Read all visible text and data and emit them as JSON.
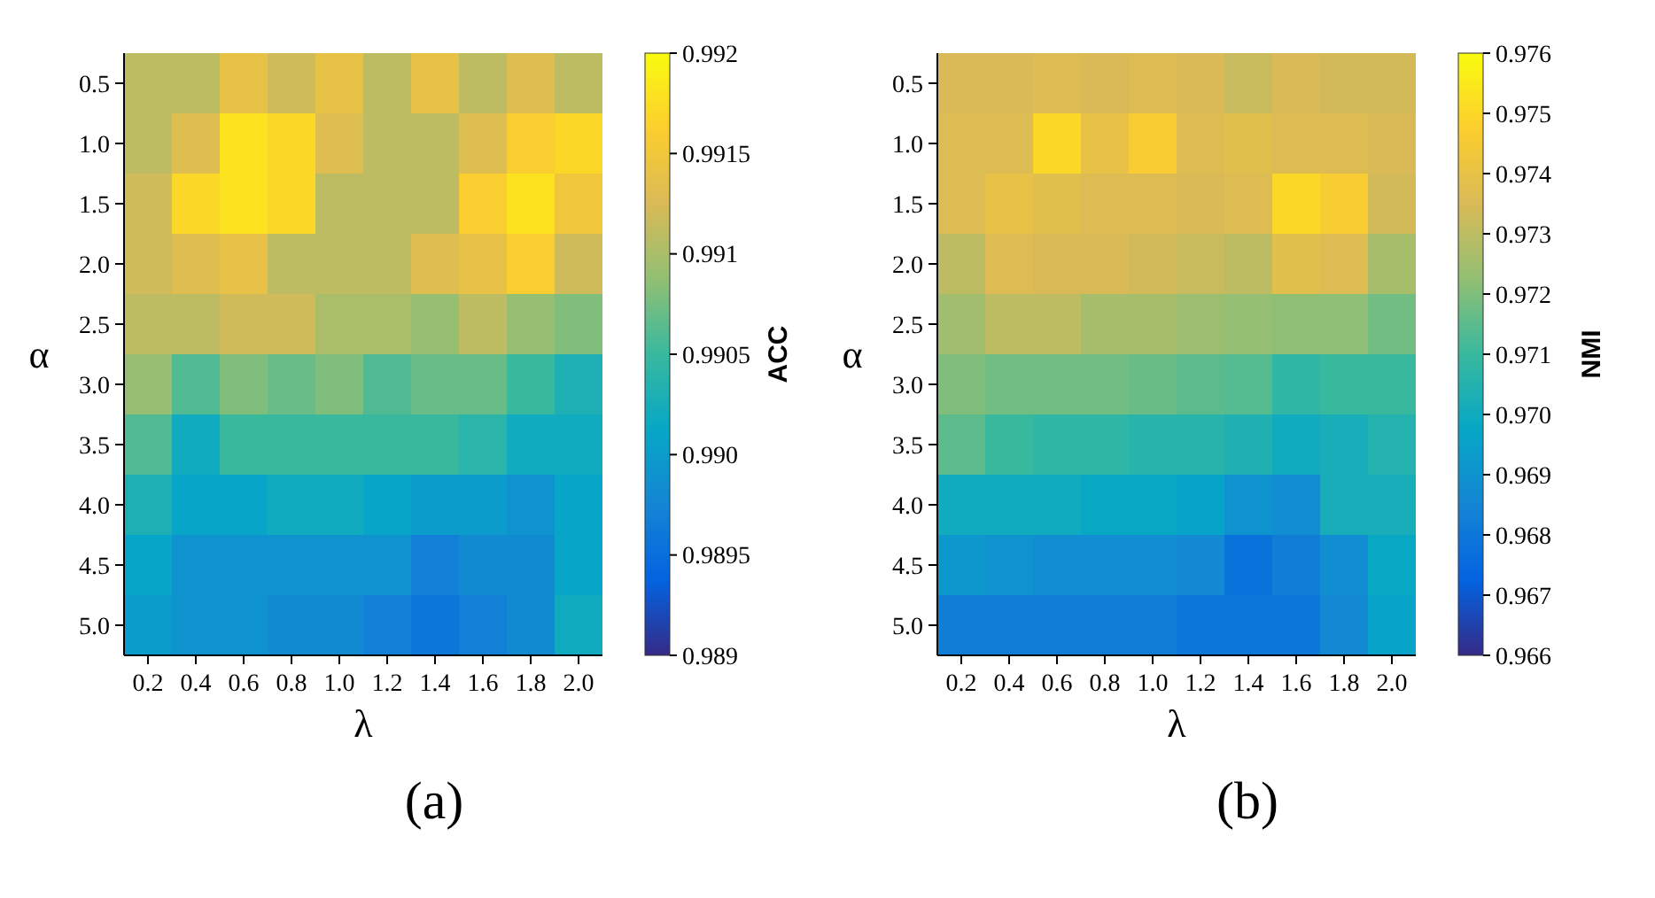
{
  "chart_data": [
    {
      "type": "heatmap",
      "title": "(a)",
      "xlabel": "λ",
      "ylabel": "α",
      "clabel": "ACC",
      "categories": [
        "0.2",
        "0.4",
        "0.6",
        "0.8",
        "1.0",
        "1.2",
        "1.4",
        "1.6",
        "1.8",
        "2.0"
      ],
      "y_categories": [
        "0.5",
        "1.0",
        "1.5",
        "2.0",
        "2.5",
        "3.0",
        "3.5",
        "4.0",
        "4.5",
        "5.0"
      ],
      "cells": [
        [
          0.9911,
          0.9911,
          0.9914,
          0.9912,
          0.9914,
          0.9911,
          0.9914,
          0.9911,
          0.9913,
          0.9911
        ],
        [
          0.9911,
          0.9913,
          0.9918,
          0.9917,
          0.9913,
          0.9911,
          0.9911,
          0.9913,
          0.9916,
          0.9917
        ],
        [
          0.9912,
          0.9917,
          0.9918,
          0.9917,
          0.9911,
          0.9911,
          0.9911,
          0.9916,
          0.9918,
          0.9915
        ],
        [
          0.9912,
          0.9913,
          0.9914,
          0.9911,
          0.9911,
          0.9911,
          0.9913,
          0.9914,
          0.9916,
          0.9912
        ],
        [
          0.9911,
          0.9911,
          0.9912,
          0.9912,
          0.991,
          0.991,
          0.9909,
          0.9911,
          0.9909,
          0.9908
        ],
        [
          0.9909,
          0.9906,
          0.9908,
          0.9907,
          0.9908,
          0.9906,
          0.9907,
          0.9907,
          0.9905,
          0.9903
        ],
        [
          0.9906,
          0.9902,
          0.9905,
          0.9905,
          0.9905,
          0.9905,
          0.9905,
          0.9904,
          0.9902,
          0.9902
        ],
        [
          0.9903,
          0.9901,
          0.9901,
          0.9902,
          0.9902,
          0.9901,
          0.99,
          0.99,
          0.9899,
          0.9901
        ],
        [
          0.9901,
          0.9899,
          0.9899,
          0.9899,
          0.9899,
          0.9899,
          0.9897,
          0.9898,
          0.9898,
          0.9901
        ],
        [
          0.99,
          0.9899,
          0.9899,
          0.9898,
          0.9898,
          0.9897,
          0.9896,
          0.9897,
          0.9898,
          0.9902
        ]
      ],
      "clim": [
        0.989,
        0.992
      ],
      "cticks": [
        0.989,
        0.9895,
        {
          "value": 0.99,
          "label": "0.990"
        },
        0.9905,
        0.991,
        0.9915,
        0.992
      ]
    },
    {
      "type": "heatmap",
      "title": "(b)",
      "xlabel": "λ",
      "ylabel": "α",
      "clabel": "NMI",
      "categories": [
        "0.2",
        "0.4",
        "0.6",
        "0.8",
        "1.0",
        "1.2",
        "1.4",
        "1.6",
        "1.8",
        "2.0"
      ],
      "y_categories": [
        "0.5",
        "1.0",
        "1.5",
        "2.0",
        "2.5",
        "3.0",
        "3.5",
        "4.0",
        "4.5",
        "5.0"
      ],
      "cells": [
        [
          0.9735,
          0.9735,
          0.9736,
          0.9735,
          0.9736,
          0.9735,
          0.9732,
          0.9735,
          0.9734,
          0.9734
        ],
        [
          0.9736,
          0.9736,
          0.975,
          0.974,
          0.9746,
          0.9736,
          0.9738,
          0.9736,
          0.9736,
          0.9735
        ],
        [
          0.9736,
          0.974,
          0.9738,
          0.9736,
          0.9736,
          0.9735,
          0.9736,
          0.975,
          0.9746,
          0.9734
        ],
        [
          0.973,
          0.9736,
          0.9735,
          0.9735,
          0.9734,
          0.9732,
          0.973,
          0.9738,
          0.9736,
          0.9726
        ],
        [
          0.9725,
          0.973,
          0.973,
          0.9726,
          0.9726,
          0.9724,
          0.9723,
          0.9722,
          0.9722,
          0.9718
        ],
        [
          0.972,
          0.9718,
          0.9718,
          0.9718,
          0.9717,
          0.9715,
          0.9714,
          0.9708,
          0.971,
          0.971
        ],
        [
          0.9715,
          0.971,
          0.9708,
          0.9708,
          0.9706,
          0.9706,
          0.9704,
          0.97,
          0.9702,
          0.9705
        ],
        [
          0.97,
          0.97,
          0.97,
          0.9698,
          0.9698,
          0.9696,
          0.969,
          0.9688,
          0.9702,
          0.9702
        ],
        [
          0.9692,
          0.969,
          0.9688,
          0.9688,
          0.9688,
          0.9686,
          0.9678,
          0.9682,
          0.9688,
          0.9698
        ],
        [
          0.9682,
          0.9682,
          0.9682,
          0.9682,
          0.9682,
          0.968,
          0.968,
          0.968,
          0.9686,
          0.9696
        ]
      ],
      "clim": [
        0.966,
        0.976
      ],
      "cticks": [
        0.966,
        0.967,
        0.968,
        0.969,
        {
          "value": 0.97,
          "label": "0.970"
        },
        0.971,
        0.972,
        0.973,
        0.974,
        0.975,
        0.976
      ]
    }
  ]
}
